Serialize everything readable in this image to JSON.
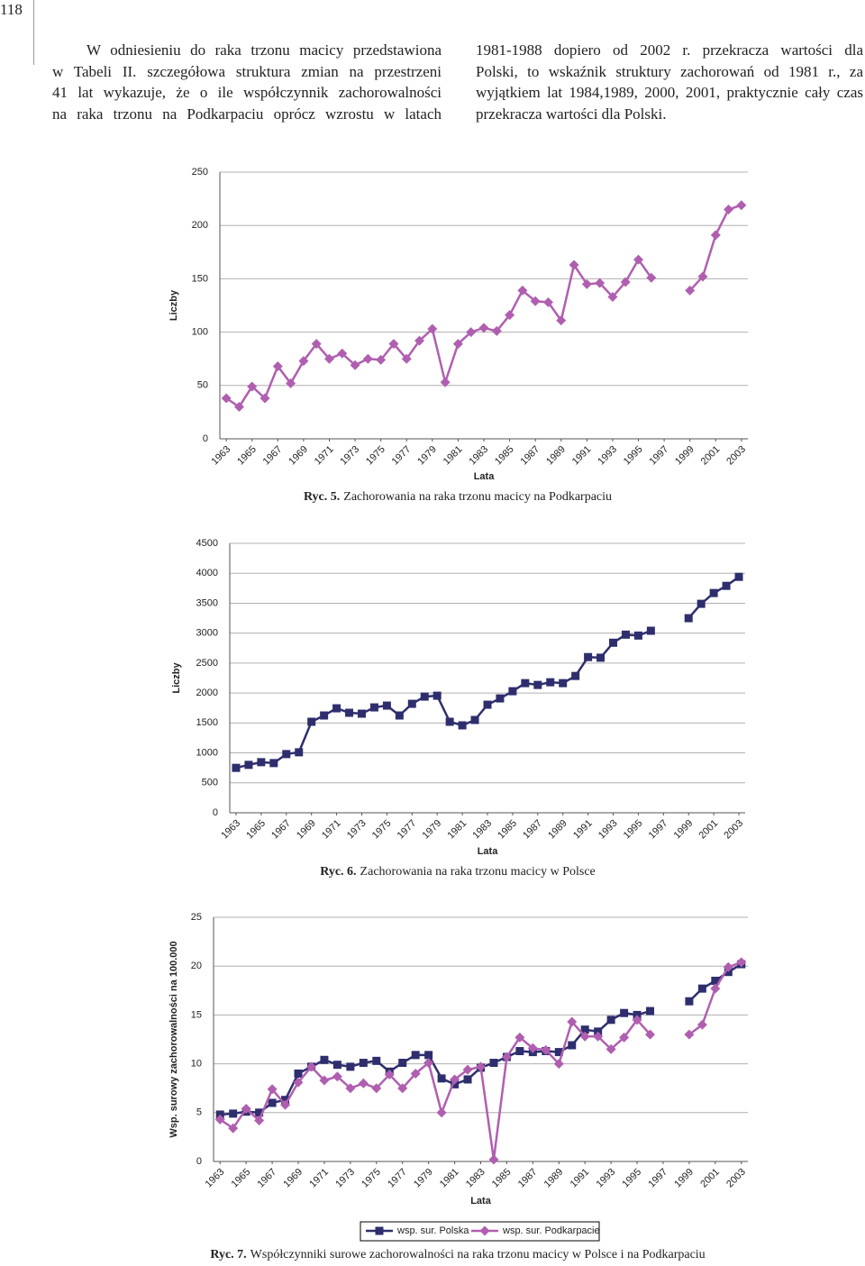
{
  "page_number": "118",
  "text": {
    "left_lines": [
      "W odniesieniu do raka trzonu macicy przedstawiona",
      "w Tabeli II. szczegółowa struktura zmian na przestrzeni",
      "41 lat wykazuje, że o ile współczynnik zachorowalności",
      "na raka trzonu na Podkarpaciu oprócz wzrostu w latach"
    ],
    "right_lines": [
      "1981-1988 dopiero od 2002 r. przekracza wartości dla",
      "Polski, to wskaźnik struktury zachorowań od 1981 r., za",
      "wyjątkiem lat 1984,1989, 2000, 2001, praktycznie cały czas",
      "przekracza wartości dla Polski."
    ]
  },
  "chart_data": [
    {
      "type": "line",
      "figure_label": "Ryc. 5.",
      "caption": "Zachorowania na raka trzonu macicy na Podkarpaciu",
      "xlabel": "Lata",
      "ylabel": "Liczby",
      "x": [
        1963,
        1964,
        1965,
        1966,
        1967,
        1968,
        1969,
        1970,
        1971,
        1972,
        1973,
        1974,
        1975,
        1976,
        1977,
        1978,
        1979,
        1980,
        1981,
        1982,
        1983,
        1984,
        1985,
        1986,
        1987,
        1988,
        1989,
        1990,
        1991,
        1992,
        1993,
        1994,
        1995,
        1996,
        1997,
        1998,
        1999,
        2000,
        2001,
        2002,
        2003
      ],
      "series": [
        {
          "color": "#b05fb0",
          "marker": "diamond",
          "values": [
            38,
            30,
            49,
            38,
            68,
            52,
            73,
            89,
            75,
            80,
            69,
            75,
            74,
            89,
            75,
            92,
            103,
            53,
            89,
            100,
            104,
            101,
            116,
            139,
            129,
            128,
            111,
            163,
            145,
            146,
            133,
            147,
            168,
            151,
            null,
            null,
            139,
            152,
            191,
            215,
            219
          ]
        }
      ],
      "xlim": [
        1962.5,
        2003.5
      ],
      "xticks": [
        1963,
        1965,
        1967,
        1969,
        1971,
        1973,
        1975,
        1977,
        1979,
        1981,
        1983,
        1985,
        1987,
        1989,
        1991,
        1993,
        1995,
        1997,
        1999,
        2001,
        2003
      ],
      "ylim": [
        0,
        250
      ],
      "yticks": [
        0,
        50,
        100,
        150,
        200,
        250
      ],
      "grid": true
    },
    {
      "type": "line",
      "figure_label": "Ryc. 6.",
      "caption": "Zachorowania na raka trzonu macicy w Polsce",
      "xlabel": "Lata",
      "ylabel": "Liczby",
      "x": [
        1963,
        1964,
        1965,
        1966,
        1967,
        1968,
        1969,
        1970,
        1971,
        1972,
        1973,
        1974,
        1975,
        1976,
        1977,
        1978,
        1979,
        1980,
        1981,
        1982,
        1983,
        1984,
        1985,
        1986,
        1987,
        1988,
        1989,
        1990,
        1991,
        1992,
        1993,
        1994,
        1995,
        1996,
        1997,
        1998,
        1999,
        2000,
        2001,
        2002,
        2003
      ],
      "series": [
        {
          "color": "#2e2e6e",
          "marker": "square",
          "values": [
            750,
            800,
            845,
            830,
            980,
            1010,
            1520,
            1625,
            1745,
            1670,
            1655,
            1760,
            1790,
            1625,
            1820,
            1940,
            1955,
            1520,
            1460,
            1550,
            1805,
            1910,
            2030,
            2165,
            2135,
            2180,
            2165,
            2285,
            2600,
            2590,
            2840,
            2975,
            2960,
            3040,
            null,
            null,
            3250,
            3490,
            3670,
            3790,
            3940
          ]
        }
      ],
      "xlim": [
        1962.5,
        2003.5
      ],
      "xticks": [
        1963,
        1965,
        1967,
        1969,
        1971,
        1973,
        1975,
        1977,
        1979,
        1981,
        1983,
        1985,
        1987,
        1989,
        1991,
        1993,
        1995,
        1997,
        1999,
        2001,
        2003
      ],
      "ylim": [
        0,
        4500
      ],
      "yticks": [
        0,
        500,
        1000,
        1500,
        2000,
        2500,
        3000,
        3500,
        4000,
        4500
      ],
      "grid": true
    },
    {
      "type": "line",
      "figure_label": "Ryc. 7.",
      "caption": "Współczynniki surowe zachorowalności na raka trzonu macicy w Polsce i na Podkarpaciu",
      "xlabel": "Lata",
      "ylabel": "Wsp. surowy zachorowalności na 100.000",
      "x": [
        1963,
        1964,
        1965,
        1966,
        1967,
        1968,
        1969,
        1970,
        1971,
        1972,
        1973,
        1974,
        1975,
        1976,
        1977,
        1978,
        1979,
        1980,
        1981,
        1982,
        1983,
        1984,
        1985,
        1986,
        1987,
        1988,
        1989,
        1990,
        1991,
        1992,
        1993,
        1994,
        1995,
        1996,
        1997,
        1998,
        1999,
        2000,
        2001,
        2002,
        2003
      ],
      "series": [
        {
          "name": "wsp. sur. Polska",
          "color": "#2e2e6e",
          "marker": "square",
          "values": [
            4.8,
            4.9,
            5.1,
            5.0,
            6.0,
            6.3,
            9.0,
            9.7,
            10.4,
            9.9,
            9.7,
            10.1,
            10.3,
            9.2,
            10.1,
            10.9,
            10.9,
            8.5,
            7.9,
            8.4,
            9.6,
            10.1,
            10.7,
            11.3,
            11.2,
            11.3,
            11.2,
            11.9,
            13.5,
            13.3,
            14.5,
            15.2,
            15.0,
            15.4,
            null,
            null,
            16.4,
            17.7,
            18.5,
            19.4,
            20.2
          ]
        },
        {
          "name": "wsp. sur. Podkarpacie",
          "color": "#b05fb0",
          "marker": "diamond",
          "values": [
            4.3,
            3.4,
            5.4,
            4.2,
            7.4,
            5.8,
            8.1,
            9.7,
            8.3,
            8.7,
            7.5,
            8.0,
            7.5,
            8.9,
            7.5,
            9.0,
            10.1,
            5.0,
            8.4,
            9.4,
            9.7,
            0.2,
            10.7,
            12.7,
            11.6,
            11.4,
            10.0,
            14.3,
            12.8,
            12.8,
            11.5,
            12.7,
            14.5,
            13.0,
            null,
            null,
            13.0,
            14.0,
            17.7,
            19.9,
            20.4
          ]
        }
      ],
      "xlim": [
        1962.5,
        2003.5
      ],
      "xticks": [
        1963,
        1965,
        1967,
        1969,
        1971,
        1973,
        1975,
        1977,
        1979,
        1981,
        1983,
        1985,
        1987,
        1989,
        1991,
        1993,
        1995,
        1997,
        1999,
        2001,
        2003
      ],
      "ylim": [
        0,
        25
      ],
      "yticks": [
        0,
        5,
        10,
        15,
        20,
        25
      ],
      "grid": true,
      "legend": "bottom"
    }
  ]
}
